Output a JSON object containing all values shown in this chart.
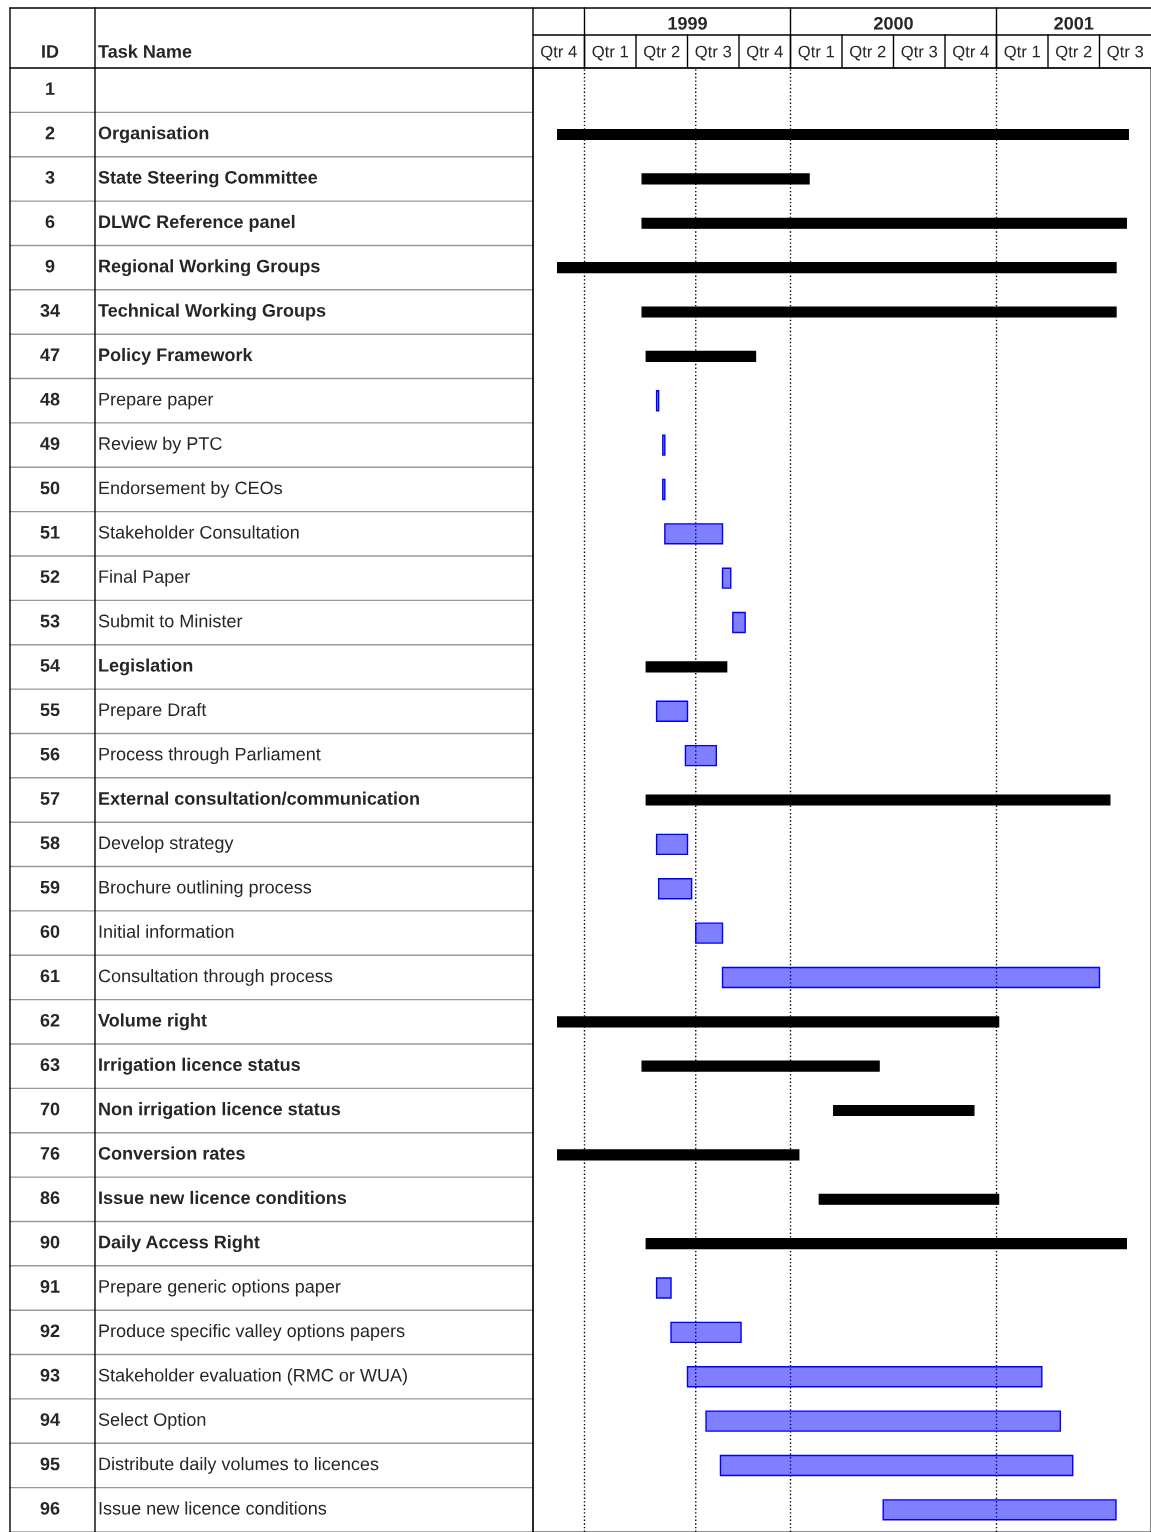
{
  "chart_data": {
    "type": "bar",
    "orientation": "horizontal",
    "annotations": [
      "ID",
      "Task Name",
      "Qtr 4",
      "Qtr 1",
      "Qtr 2",
      "Qtr 3",
      "Qtr 4",
      "Qtr 1",
      "Qtr 2",
      "Qtr 3",
      "Qtr 4",
      "Qtr 1",
      "Qtr 2",
      "Qtr 3"
    ],
    "categories": [
      null,
      "Organisation",
      "State Steering Committee",
      "DLWC Reference panel",
      "Regional Working Groups",
      "Technical Working Groups",
      "Policy Framework",
      "Prepare paper",
      "Review by PTC",
      "Endorsement by CEOs",
      "Stakeholder Consultation",
      "Final Paper",
      "Submit to Minister",
      "Legislation",
      "Prepare Draft",
      "Process through Parliament",
      "External consultation/communication",
      "Develop strategy",
      "Brochure outlining process",
      "Initial information",
      "Consultation through process",
      "Volume right",
      "Irrigation licence status",
      "Non irrigation licence status",
      "Conversion rates",
      "Issue new licence conditions",
      "Daily Access Right",
      "Prepare generic options paper",
      "Produce specific valley options papers",
      "Stakeholder evaluation (RMC or WUA)",
      "Select Option",
      "Distribute daily volumes to licences",
      "Issue new licence conditions"
    ],
    "y2_categories": [
      "1",
      "2",
      "3",
      "6",
      "9",
      "34",
      "47",
      "48",
      "49",
      "50",
      "51",
      "52",
      "53",
      "54",
      "55",
      "56",
      "57",
      "58",
      "59",
      "60",
      "61",
      "62",
      "63",
      "70",
      "76",
      "86",
      "90",
      "91",
      "92",
      "93",
      "94",
      "95",
      "96"
    ],
    "base": [
      null,
      1998.87,
      1999.28,
      1999.28,
      1998.87,
      1999.28,
      1999.3,
      1999.35,
      1999.38,
      1999.38,
      1999.39,
      1999.67,
      1999.72,
      1999.3,
      1999.35,
      1999.49,
      1999.3,
      1999.35,
      1999.36,
      1999.54,
      1999.67,
      1998.87,
      1999.28,
      2000.21,
      1998.87,
      2000.14,
      1999.3,
      1999.35,
      1999.42,
      1999.5,
      1999.59,
      1999.66,
      2000.45
    ],
    "values": [
      null,
      2.77,
      0.81,
      2.35,
      2.71,
      2.3,
      0.53,
      0.01,
      0.01,
      0.01,
      0.28,
      0.04,
      0.06,
      0.39,
      0.15,
      0.15,
      2.25,
      0.15,
      0.16,
      0.13,
      1.83,
      2.14,
      1.15,
      0.68,
      1.17,
      0.87,
      2.33,
      0.07,
      0.34,
      1.72,
      1.72,
      1.71,
      1.13
    ],
    "colors": [
      null,
      "#000000",
      "#000000",
      "#000000",
      "#000000",
      "#000000",
      "#000000",
      "#0000ff",
      "#0000ff",
      "#0000ff",
      "#0000ff",
      "#0000ff",
      "#0000ff",
      "#000000",
      "#0000ff",
      "#0000ff",
      "#000000",
      "#0000ff",
      "#0000ff",
      "#0000ff",
      "#0000ff",
      "#000000",
      "#000000",
      "#000000",
      "#000000",
      "#000000",
      "#000000",
      "#0000ff",
      "#0000ff",
      "#0000ff",
      "#0000ff",
      "#0000ff",
      "#0000ff"
    ],
    "xlim": [
      1998.75,
      2001.75
    ],
    "xticks": [
      {
        "value": 1999.5,
        "label": "1999"
      },
      {
        "value": 2000.5,
        "label": "2000"
      },
      {
        "value": 2001.375,
        "label": "2001"
      }
    ],
    "ref_lines": [
      {
        "axis": "x",
        "value": 1999,
        "color": "#000000",
        "line_style": "dotted"
      },
      {
        "axis": "x",
        "value": 1999.54,
        "color": "#000000",
        "line_style": "dotted"
      },
      {
        "axis": "x",
        "value": 2000,
        "color": "#000000",
        "line_style": "dotted"
      },
      {
        "axis": "x",
        "value": 2001,
        "color": "#000000",
        "line_style": "dotted"
      }
    ],
    "grid": false,
    "legend": false
  }
}
